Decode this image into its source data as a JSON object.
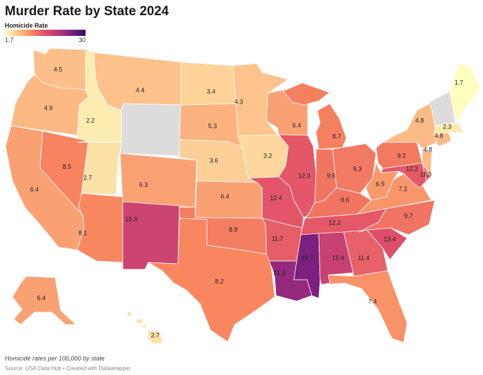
{
  "title": "Murder Rate by State 2024",
  "legend": {
    "title": "Homicide Rate",
    "min": "1.7",
    "max": "30",
    "colors": [
      "#fcfdbf",
      "#fdc38c",
      "#f8865f",
      "#e0506a",
      "#b5367a",
      "#7a1f80",
      "#2c1162"
    ],
    "no_data_color": "#dcdcdc"
  },
  "notes": "Homicide rates per 100,000 by state",
  "source": "Source: USA Data Hub • Created with Datawrapper",
  "states": [
    {
      "id": "WA",
      "value": 4.5,
      "label": "4.5"
    },
    {
      "id": "OR",
      "value": 4.9,
      "label": "4.9"
    },
    {
      "id": "CA",
      "value": 6.4,
      "label": "6.4"
    },
    {
      "id": "ID",
      "value": 2.2,
      "label": "2.2"
    },
    {
      "id": "NV",
      "value": 8.5,
      "label": "8.5"
    },
    {
      "id": "MT",
      "value": 4.4,
      "label": "4.4"
    },
    {
      "id": "WY",
      "value": null,
      "label": ""
    },
    {
      "id": "UT",
      "value": 2.7,
      "label": "2.7"
    },
    {
      "id": "AZ",
      "value": 8.1,
      "label": "8.1"
    },
    {
      "id": "CO",
      "value": 6.3,
      "label": "6.3"
    },
    {
      "id": "NM",
      "value": 15.3,
      "label": "15.3"
    },
    {
      "id": "ND",
      "value": 3.4,
      "label": "3.4"
    },
    {
      "id": "SD",
      "value": 5.3,
      "label": "5.3"
    },
    {
      "id": "NE",
      "value": 3.6,
      "label": "3.6"
    },
    {
      "id": "KS",
      "value": 6.4,
      "label": "6.4"
    },
    {
      "id": "OK",
      "value": 8.9,
      "label": "8.9"
    },
    {
      "id": "TX",
      "value": 8.2,
      "label": "8.2"
    },
    {
      "id": "MN",
      "value": 4.3,
      "label": "4.3"
    },
    {
      "id": "IA",
      "value": 3.2,
      "label": "3.2"
    },
    {
      "id": "MO",
      "value": 12.4,
      "label": "12.4"
    },
    {
      "id": "AR",
      "value": 11.7,
      "label": "11.7"
    },
    {
      "id": "LA",
      "value": 21.3,
      "label": "21.3"
    },
    {
      "id": "WI",
      "value": 6.4,
      "label": "6.4"
    },
    {
      "id": "IL",
      "value": 12.3,
      "label": "12.3"
    },
    {
      "id": "MI",
      "value": 8.7,
      "label": "8.7"
    },
    {
      "id": "IN",
      "value": 9.6,
      "label": "9.6"
    },
    {
      "id": "OH",
      "value": 9.3,
      "label": "9.3"
    },
    {
      "id": "KY",
      "value": 9.6,
      "label": "9.6"
    },
    {
      "id": "TN",
      "value": 12.2,
      "label": "12.2"
    },
    {
      "id": "MS",
      "value": 23.7,
      "label": "23.7"
    },
    {
      "id": "AL",
      "value": 15.9,
      "label": "15.9"
    },
    {
      "id": "GA",
      "value": 11.4,
      "label": "11.4"
    },
    {
      "id": "FL",
      "value": 7.4,
      "label": "7.4"
    },
    {
      "id": "SC",
      "value": 13.4,
      "label": "13.4"
    },
    {
      "id": "NC",
      "value": 9.7,
      "label": "9.7"
    },
    {
      "id": "VA",
      "value": 7.2,
      "label": "7.2"
    },
    {
      "id": "WV",
      "value": 6.9,
      "label": "6.9"
    },
    {
      "id": "PA",
      "value": 9.2,
      "label": "9.2"
    },
    {
      "id": "NY",
      "value": 4.8,
      "label": "4.8"
    },
    {
      "id": "MD",
      "value": 12.2,
      "label": "12.2"
    },
    {
      "id": "DE",
      "value": 11.3,
      "label": "11.3"
    },
    {
      "id": "NJ",
      "value": 4.8,
      "label": "4.8"
    },
    {
      "id": "CT",
      "value": 4.8,
      "label": "4.8"
    },
    {
      "id": "MA",
      "value": 2.3,
      "label": "2.3"
    },
    {
      "id": "VTNH",
      "value": null,
      "label": ""
    },
    {
      "id": "ME",
      "value": 1.7,
      "label": "1.7"
    },
    {
      "id": "AK",
      "value": 6.4,
      "label": "6.4"
    },
    {
      "id": "HI",
      "value": 2.7,
      "label": "2.7"
    }
  ]
}
